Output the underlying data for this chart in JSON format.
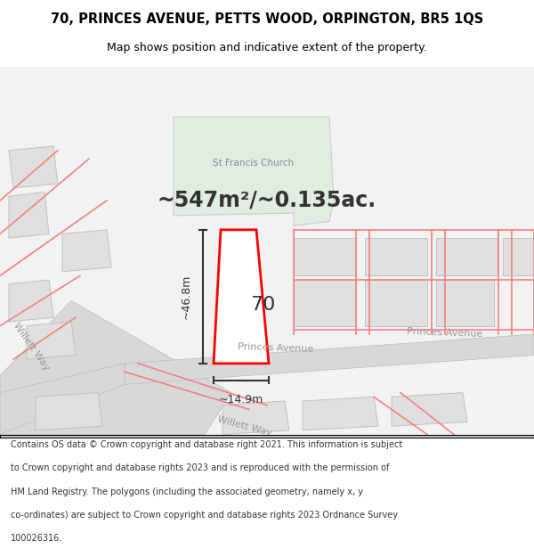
{
  "title_line1": "70, PRINCES AVENUE, PETTS WOOD, ORPINGTON, BR5 1QS",
  "title_line2": "Map shows position and indicative extent of the property.",
  "area_text": "~547m²/~0.135ac.",
  "height_label": "~46.8m",
  "width_label": "~14.9m",
  "number_label": "70",
  "street_label_left": "Princes Avenue",
  "street_label_right": "Princes Avenue",
  "road_label_bottom": "Willett Way",
  "road_label_left": "Willett Way",
  "church_label": "St Francis Church",
  "footer_text": "Contains OS data © Crown copyright and database right 2021. This information is subject to Crown copyright and database rights 2023 and is reproduced with the permission of HM Land Registry. The polygons (including the associated geometry, namely x, y co-ordinates) are subject to Crown copyright and database rights 2023 Ordnance Survey 100026316.",
  "bg_color": "#ffffff",
  "map_bg": "#f5f5f5",
  "building_fill": "#e8e8e8",
  "building_stroke": "#cccccc",
  "road_color": "#d0d0d0",
  "highlight_fill": "#ffffff",
  "highlight_stroke": "#ff0000",
  "church_fill": "#e0ede0",
  "church_stroke": "#cccccc",
  "dim_line_color": "#333333",
  "road_label_color": "#999999",
  "light_red": "#ffaaaa"
}
